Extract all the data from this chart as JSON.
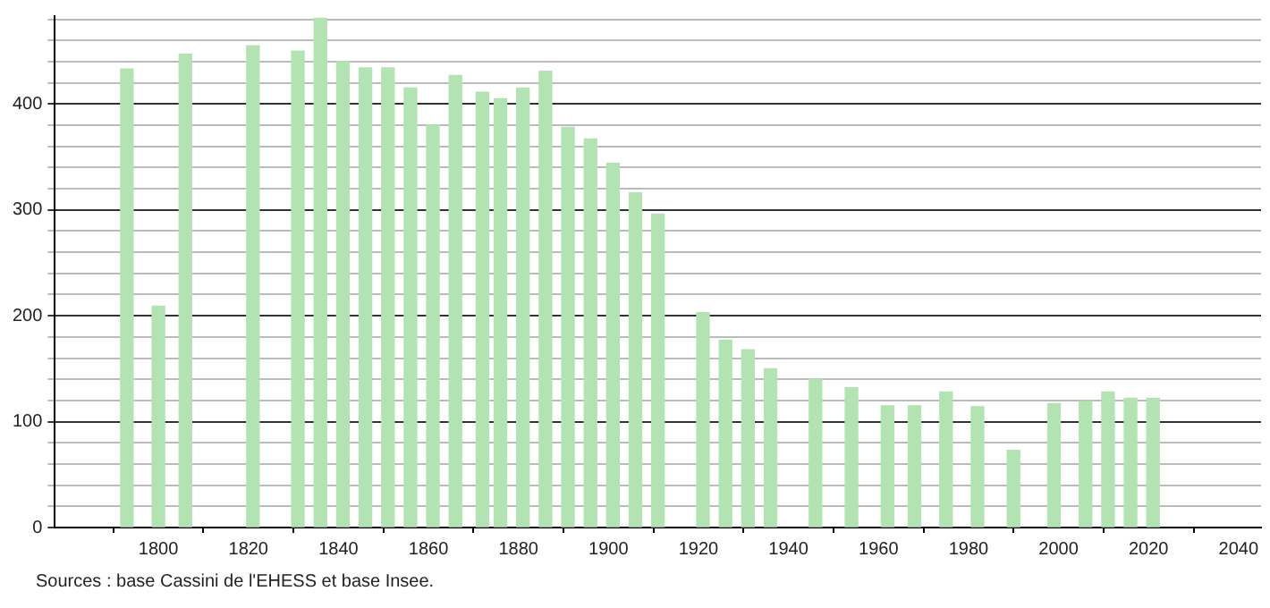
{
  "chart_data": {
    "type": "bar",
    "x": [
      1793,
      1800,
      1806,
      1821,
      1831,
      1836,
      1841,
      1846,
      1851,
      1856,
      1861,
      1866,
      1872,
      1876,
      1881,
      1886,
      1891,
      1896,
      1901,
      1906,
      1911,
      1921,
      1926,
      1931,
      1936,
      1946,
      1954,
      1962,
      1968,
      1975,
      1982,
      1990,
      1999,
      2006,
      2011,
      2016,
      2021
    ],
    "values": [
      433,
      209,
      447,
      455,
      450,
      481,
      440,
      434,
      434,
      415,
      380,
      427,
      411,
      405,
      415,
      431,
      378,
      367,
      344,
      316,
      296,
      203,
      177,
      168,
      150,
      140,
      132,
      115,
      115,
      128,
      114,
      73,
      117,
      119,
      128,
      122,
      122
    ],
    "color": "#b3e3b3",
    "xlim": [
      1777,
      2045
    ],
    "xticks": [
      1800,
      1820,
      1840,
      1860,
      1880,
      1900,
      1920,
      1940,
      1960,
      1980,
      2000,
      2020,
      2040
    ],
    "ylim": [
      0,
      483
    ],
    "yticks": [
      0,
      {
        "value": 20,
        "label": null
      },
      {
        "value": 40,
        "label": null
      },
      {
        "value": 60,
        "label": null
      },
      {
        "value": 80,
        "label": null
      },
      100,
      {
        "value": 120,
        "label": null
      },
      {
        "value": 140,
        "label": null
      },
      {
        "value": 160,
        "label": null
      },
      {
        "value": 180,
        "label": null
      },
      200,
      {
        "value": 220,
        "label": null
      },
      {
        "value": 240,
        "label": null
      },
      {
        "value": 260,
        "label": null
      },
      {
        "value": 280,
        "label": null
      },
      300,
      {
        "value": 320,
        "label": null
      },
      {
        "value": 340,
        "label": null
      },
      {
        "value": 360,
        "label": null
      },
      {
        "value": 380,
        "label": null
      },
      400,
      {
        "value": 420,
        "label": null
      },
      {
        "value": 440,
        "label": null
      },
      {
        "value": 460,
        "label": null
      },
      {
        "value": 480,
        "label": null
      }
    ],
    "grid": "y",
    "annotations": [
      "Sources : base Cassini de l'EHESS et base Insee."
    ]
  }
}
